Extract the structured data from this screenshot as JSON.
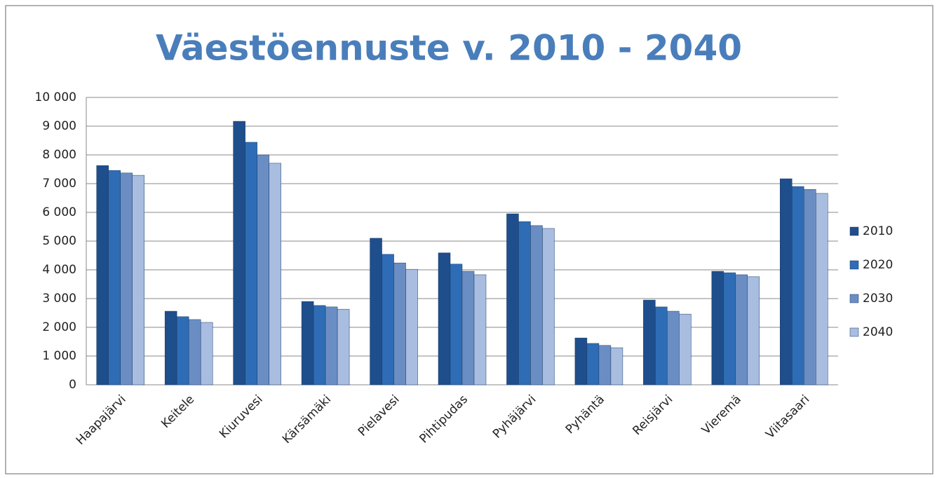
{
  "chart_data": {
    "type": "bar",
    "title": "Väestöennuste v. 2010 - 2040",
    "categories": [
      "Haapajärvi",
      "Keitele",
      "Kiuruvesi",
      "Kärsämäki",
      "Pielavesi",
      "Pihtipudas",
      "Pyhäjärvi",
      "Pyhäntä",
      "Reisjärvi",
      "Vieremä",
      "Viitasaari"
    ],
    "series": [
      {
        "name": "2010",
        "color": "#1f4e8c",
        "values": [
          7630,
          2560,
          9170,
          2900,
          5100,
          4590,
          5950,
          1630,
          2950,
          3950,
          7170
        ]
      },
      {
        "name": "2020",
        "color": "#2e6db5",
        "values": [
          7460,
          2370,
          8440,
          2760,
          4540,
          4200,
          5680,
          1440,
          2710,
          3900,
          6900
        ]
      },
      {
        "name": "2030",
        "color": "#6a8ec4",
        "values": [
          7370,
          2270,
          8000,
          2710,
          4240,
          3950,
          5540,
          1370,
          2560,
          3830,
          6800
        ]
      },
      {
        "name": "2040",
        "color": "#a8bde0",
        "values": [
          7290,
          2170,
          7710,
          2630,
          4020,
          3830,
          5440,
          1290,
          2460,
          3760,
          6660
        ]
      }
    ],
    "ylim": [
      0,
      10000
    ],
    "yticks": [
      0,
      {
        "value": 1000,
        "label": "1 000"
      },
      {
        "value": 2000,
        "label": "2 000"
      },
      {
        "value": 3000,
        "label": "3 000"
      },
      {
        "value": 4000,
        "label": "4 000"
      },
      {
        "value": 5000,
        "label": "5 000"
      },
      {
        "value": 6000,
        "label": "6 000"
      },
      {
        "value": 7000,
        "label": "7 000"
      },
      {
        "value": 8000,
        "label": "8 000"
      },
      {
        "value": 9000,
        "label": "9 000"
      },
      {
        "value": 10000,
        "label": "10 000"
      }
    ],
    "grid": true,
    "legend": "right"
  }
}
